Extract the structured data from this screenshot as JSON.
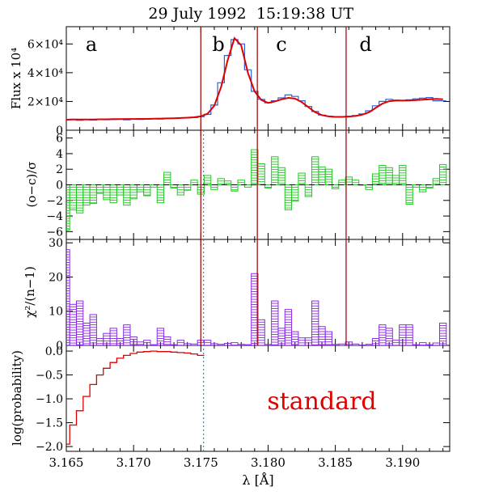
{
  "title": {
    "date": "29 July 1992",
    "time": "15:19:38 UT"
  },
  "xaxis": {
    "label": "λ [Å]",
    "range": [
      3.165,
      3.1935
    ],
    "ticks": [
      "3.165",
      "3.170",
      "3.175",
      "3.180",
      "3.185",
      "3.190"
    ]
  },
  "region_labels": [
    "a",
    "b",
    "c",
    "d"
  ],
  "annotation": "standard",
  "colors": {
    "observed_histogram": "#2f5fd0",
    "model_fit": "#e00000",
    "residuals": "#22c822",
    "chi2": "#8a2be2",
    "probability": "#e00000",
    "region_boundaries": "#a01010",
    "dotted_marker": "#1e8fd0",
    "annotation_text": "#e00000"
  },
  "chart_data": [
    {
      "panel": "flux",
      "type": "line",
      "ylabel": "Flux x 10⁴",
      "ylim": [
        0,
        72000
      ],
      "yticks": [
        0,
        20000,
        40000,
        60000
      ],
      "ytick_labels": [
        "0",
        "2×10⁴",
        "4×10⁴",
        "6×10⁴"
      ],
      "x_step_width": 0.0005,
      "series": [
        {
          "name": "observed (histogram)",
          "style": "step",
          "x": [
            3.165,
            3.1655,
            3.166,
            3.1665,
            3.167,
            3.1675,
            3.168,
            3.1685,
            3.169,
            3.1695,
            3.17,
            3.1705,
            3.171,
            3.1715,
            3.172,
            3.1725,
            3.173,
            3.1735,
            3.174,
            3.1745,
            3.175,
            3.1755,
            3.176,
            3.1765,
            3.177,
            3.1775,
            3.178,
            3.1785,
            3.179,
            3.1795,
            3.18,
            3.1805,
            3.181,
            3.1815,
            3.182,
            3.1825,
            3.183,
            3.1835,
            3.184,
            3.1845,
            3.185,
            3.1855,
            3.186,
            3.1865,
            3.187,
            3.1875,
            3.188,
            3.1885,
            3.189,
            3.1895,
            3.19,
            3.1905,
            3.191,
            3.1915,
            3.192,
            3.1925,
            3.193
          ],
          "values": [
            7200,
            7600,
            7000,
            7400,
            7100,
            7600,
            7300,
            7400,
            7600,
            7200,
            7800,
            7500,
            7700,
            8000,
            7800,
            8300,
            8200,
            8600,
            8600,
            8800,
            9400,
            11000,
            17500,
            33000,
            52000,
            63000,
            60000,
            42000,
            27000,
            21500,
            19000,
            20500,
            22500,
            24500,
            23500,
            20500,
            16500,
            13000,
            10500,
            9800,
            9200,
            9400,
            9700,
            10200,
            11300,
            13500,
            17000,
            20000,
            21500,
            21000,
            20800,
            21200,
            21800,
            22300,
            22700,
            20500,
            20500
          ]
        },
        {
          "name": "model fit",
          "style": "line",
          "x": [
            3.165,
            3.1655,
            3.166,
            3.1665,
            3.167,
            3.1675,
            3.168,
            3.1685,
            3.169,
            3.1695,
            3.17,
            3.1705,
            3.171,
            3.1715,
            3.172,
            3.1725,
            3.173,
            3.1735,
            3.174,
            3.1745,
            3.175,
            3.1755,
            3.176,
            3.1765,
            3.177,
            3.1775,
            3.178,
            3.1785,
            3.179,
            3.1795,
            3.18,
            3.1805,
            3.181,
            3.1815,
            3.182,
            3.1825,
            3.183,
            3.1835,
            3.184,
            3.1845,
            3.185,
            3.1855,
            3.186,
            3.1865,
            3.187,
            3.1875,
            3.188,
            3.1885,
            3.189,
            3.1895,
            3.19,
            3.1905,
            3.191,
            3.1915,
            3.192,
            3.1925,
            3.193
          ],
          "values": [
            7300,
            7400,
            7400,
            7500,
            7500,
            7600,
            7600,
            7700,
            7700,
            7800,
            7800,
            7900,
            7900,
            8000,
            8100,
            8200,
            8300,
            8500,
            8700,
            9000,
            9700,
            11500,
            17000,
            30000,
            49000,
            64000,
            59000,
            40000,
            27000,
            21000,
            19000,
            20000,
            21500,
            22500,
            22000,
            19500,
            16000,
            12500,
            10500,
            9600,
            9300,
            9300,
            9500,
            9900,
            10800,
            12500,
            15500,
            18500,
            20200,
            20600,
            20600,
            20700,
            20900,
            21200,
            21500,
            21800,
            21500
          ]
        }
      ]
    },
    {
      "panel": "residuals",
      "type": "bar",
      "style": "hatched-step",
      "ylabel": "(o−c)/σ",
      "ylim": [
        -7,
        7
      ],
      "yticks": [
        -6,
        -4,
        -2,
        0,
        2,
        4,
        6
      ],
      "ytick_labels": [
        "−6",
        "−4",
        "−2",
        "0",
        "2",
        "4",
        "6"
      ],
      "zero_line": "dashed",
      "x": [
        3.165,
        3.1655,
        3.166,
        3.1665,
        3.167,
        3.1675,
        3.168,
        3.1685,
        3.169,
        3.1695,
        3.17,
        3.1705,
        3.171,
        3.1715,
        3.172,
        3.1725,
        3.173,
        3.1735,
        3.174,
        3.1745,
        3.175,
        3.1755,
        3.176,
        3.1765,
        3.177,
        3.1775,
        3.178,
        3.1785,
        3.179,
        3.1795,
        3.18,
        3.1805,
        3.181,
        3.1815,
        3.182,
        3.1825,
        3.183,
        3.1835,
        3.184,
        3.1845,
        3.185,
        3.1855,
        3.186,
        3.1865,
        3.187,
        3.1875,
        3.188,
        3.1885,
        3.189,
        3.1895,
        3.19,
        3.1905,
        3.191,
        3.1915,
        3.192,
        3.1925,
        3.193
      ],
      "values": [
        -5.8,
        -3.2,
        -3.6,
        -2.6,
        -2.4,
        -1.1,
        -1.9,
        -2.3,
        -1.3,
        -2.6,
        -1.8,
        -0.9,
        -1.4,
        -0.3,
        -2.3,
        1.6,
        -0.4,
        -1.3,
        -0.7,
        0.6,
        -1.2,
        1.2,
        -0.6,
        0.8,
        0.5,
        -0.8,
        0.6,
        -0.3,
        4.5,
        2.7,
        -0.4,
        3.6,
        2.2,
        -3.2,
        -2.1,
        1.5,
        -1.5,
        3.6,
        2.3,
        2.0,
        -0.5,
        0.6,
        1.0,
        0.6,
        0.0,
        -0.6,
        1.4,
        2.5,
        2.2,
        1.2,
        2.5,
        -2.5,
        -0.3,
        -0.9,
        -0.4,
        0.8,
        2.6
      ]
    },
    {
      "panel": "chi2",
      "type": "bar",
      "style": "hatched-step",
      "ylabel": "χ²/(n−1)",
      "ylim": [
        0,
        31
      ],
      "yticks": [
        0,
        10,
        20,
        30
      ],
      "ytick_labels": [
        "0",
        "10",
        "20",
        "30"
      ],
      "x": [
        3.165,
        3.1655,
        3.166,
        3.1665,
        3.167,
        3.1675,
        3.168,
        3.1685,
        3.169,
        3.1695,
        3.17,
        3.1705,
        3.171,
        3.1715,
        3.172,
        3.1725,
        3.173,
        3.1735,
        3.174,
        3.1745,
        3.175,
        3.1755,
        3.176,
        3.1765,
        3.177,
        3.1775,
        3.178,
        3.1785,
        3.179,
        3.1795,
        3.18,
        3.1805,
        3.181,
        3.1815,
        3.182,
        3.1825,
        3.183,
        3.1835,
        3.184,
        3.1845,
        3.185,
        3.1855,
        3.186,
        3.1865,
        3.187,
        3.1875,
        3.188,
        3.1885,
        3.189,
        3.1895,
        3.19,
        3.1905,
        3.191,
        3.1915,
        3.192,
        3.1925,
        3.193
      ],
      "values": [
        28,
        12,
        13,
        6.5,
        9,
        2,
        3.5,
        5,
        2,
        6,
        2.5,
        1,
        1.5,
        0.2,
        5,
        2.5,
        0.2,
        1.5,
        0.5,
        0.4,
        1.5,
        1.5,
        0.5,
        0.3,
        0.6,
        0.8,
        0.3,
        0.2,
        21,
        7.5,
        0.3,
        13,
        5,
        10.5,
        4,
        2.2,
        2.2,
        13,
        5.5,
        4,
        0.3,
        0.4,
        1,
        0.4,
        0.1,
        0.3,
        2,
        6,
        5,
        1.5,
        6,
        6,
        0.2,
        0.8,
        0.2,
        0.7,
        6.5
      ]
    },
    {
      "panel": "probability",
      "type": "line",
      "style": "step",
      "ylabel": "log(probability)",
      "ylim": [
        -2.1,
        0.12
      ],
      "yticks": [
        -2.0,
        -1.5,
        -1.0,
        -0.5,
        0.0
      ],
      "ytick_labels": [
        "−2.0",
        "−1.5",
        "−1.0",
        "−0.5",
        "0.0"
      ],
      "x": [
        3.165,
        3.1655,
        3.166,
        3.1665,
        3.167,
        3.1675,
        3.168,
        3.1685,
        3.169,
        3.1695,
        3.17,
        3.1705,
        3.171,
        3.1715,
        3.172,
        3.1725,
        3.173,
        3.1735,
        3.174,
        3.1745,
        3.175
      ],
      "values": [
        -1.95,
        -1.55,
        -1.25,
        -0.95,
        -0.7,
        -0.5,
        -0.36,
        -0.24,
        -0.15,
        -0.09,
        -0.05,
        -0.02,
        -0.01,
        0.0,
        -0.01,
        -0.01,
        -0.02,
        -0.03,
        -0.04,
        -0.06,
        -0.09
      ]
    }
  ],
  "region_boundaries": [
    3.175,
    3.1792,
    3.1858
  ],
  "dotted_marker_x": 3.1752
}
